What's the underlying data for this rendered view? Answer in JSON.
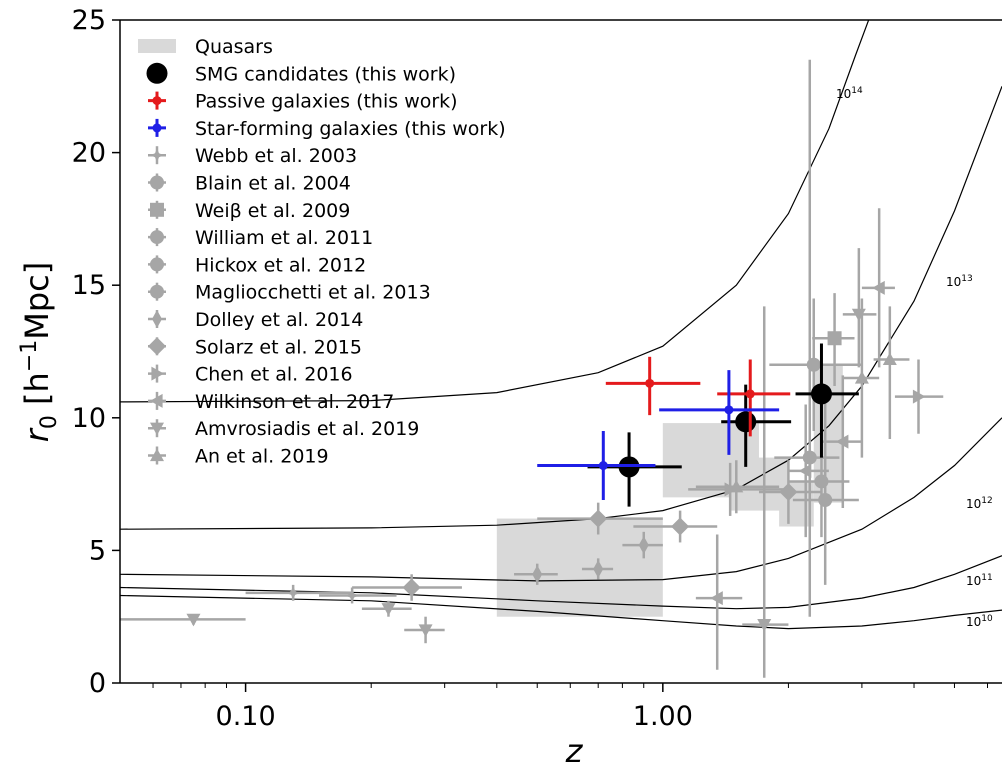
{
  "chart_data": {
    "type": "scatter",
    "xlabel": "z",
    "ylabel": "r_0 [h^-1 Mpc]",
    "xlim": [
      0.05,
      6.5
    ],
    "ylim": [
      0,
      25
    ],
    "xscale": "log",
    "xticks": [
      0.1,
      1.0
    ],
    "xtick_labels": [
      "0.10",
      "1.00"
    ],
    "yticks": [
      0,
      5,
      10,
      15,
      20,
      25
    ],
    "ytick_labels": [
      "0",
      "5",
      "10",
      "15",
      "20",
      "25"
    ],
    "legend_position": "top-left",
    "grid": false,
    "colors": {
      "grey": "#a6a6a6",
      "quasar_fill": "#d9d9d9",
      "smg": "#000000",
      "passive": "#e41a1c",
      "starforming": "#1f1fe6"
    },
    "quasar_boxes": [
      {
        "x": [
          0.4,
          1.0
        ],
        "y": [
          2.5,
          6.2
        ]
      },
      {
        "x": [
          1.0,
          1.7
        ],
        "y": [
          7.0,
          9.8
        ]
      },
      {
        "x": [
          1.45,
          2.0
        ],
        "y": [
          6.5,
          8.5
        ]
      },
      {
        "x": [
          1.9,
          2.3
        ],
        "y": [
          5.9,
          7.6
        ]
      },
      {
        "x": [
          2.3,
          2.7
        ],
        "y": [
          6.8,
          12.0
        ]
      }
    ],
    "curves": [
      {
        "label": "10^14",
        "points": [
          [
            0.05,
            10.6
          ],
          [
            0.2,
            10.65
          ],
          [
            0.4,
            10.95
          ],
          [
            0.7,
            11.7
          ],
          [
            1.0,
            12.7
          ],
          [
            1.5,
            15.0
          ],
          [
            2.0,
            17.7
          ],
          [
            2.5,
            20.9
          ],
          [
            2.9,
            23.7
          ],
          [
            3.2,
            25.5
          ]
        ]
      },
      {
        "label": "10^13",
        "points": [
          [
            0.05,
            5.8
          ],
          [
            0.2,
            5.85
          ],
          [
            0.4,
            5.95
          ],
          [
            0.7,
            6.2
          ],
          [
            1.0,
            6.5
          ],
          [
            1.5,
            7.3
          ],
          [
            2.0,
            8.4
          ],
          [
            2.5,
            9.7
          ],
          [
            3.0,
            11.2
          ],
          [
            4.0,
            14.4
          ],
          [
            5.0,
            17.8
          ],
          [
            6.5,
            22.5
          ]
        ]
      },
      {
        "label": "10^12",
        "points": [
          [
            0.05,
            4.1
          ],
          [
            0.2,
            4.0
          ],
          [
            0.5,
            3.85
          ],
          [
            1.0,
            3.9
          ],
          [
            1.5,
            4.2
          ],
          [
            2.0,
            4.7
          ],
          [
            3.0,
            5.8
          ],
          [
            4.0,
            7.0
          ],
          [
            5.0,
            8.2
          ],
          [
            6.5,
            10.0
          ]
        ]
      },
      {
        "label": "10^11",
        "points": [
          [
            0.05,
            3.6
          ],
          [
            0.2,
            3.4
          ],
          [
            0.5,
            3.1
          ],
          [
            1.0,
            2.9
          ],
          [
            1.5,
            2.8
          ],
          [
            2.0,
            2.85
          ],
          [
            3.0,
            3.2
          ],
          [
            4.0,
            3.6
          ],
          [
            5.0,
            4.1
          ],
          [
            6.5,
            4.8
          ]
        ]
      },
      {
        "label": "10^10",
        "points": [
          [
            0.05,
            3.3
          ],
          [
            0.2,
            3.1
          ],
          [
            0.5,
            2.7
          ],
          [
            1.0,
            2.35
          ],
          [
            1.5,
            2.15
          ],
          [
            2.0,
            2.05
          ],
          [
            3.0,
            2.15
          ],
          [
            4.0,
            2.35
          ],
          [
            5.0,
            2.55
          ],
          [
            6.5,
            2.75
          ]
        ]
      }
    ],
    "curve_labels": [
      "10",
      "14",
      "10",
      "13",
      "10",
      "12",
      "10",
      "11",
      "10",
      "10"
    ],
    "series": [
      {
        "name": "SMG candidates (this work)",
        "marker": "circle_big",
        "color": "#000000",
        "points": [
          [
            0.83,
            8.15,
            0.17,
            0.28,
            1.5,
            1.3
          ],
          [
            1.58,
            9.85,
            0.2,
            0.45,
            1.7,
            1.4
          ],
          [
            2.4,
            10.9,
            0.32,
            0.55,
            2.4,
            1.9
          ]
        ]
      },
      {
        "name": "Passive galaxies (this work)",
        "marker": "circle",
        "color": "#e41a1c",
        "points": [
          [
            0.93,
            11.3,
            0.2,
            0.3,
            1.2,
            1.0
          ],
          [
            1.62,
            10.9,
            0.27,
            0.4,
            1.6,
            1.3
          ]
        ]
      },
      {
        "name": "Star-forming galaxies (this work)",
        "marker": "circle",
        "color": "#1f1fe6",
        "points": [
          [
            0.72,
            8.2,
            0.22,
            0.24,
            1.3,
            1.3
          ],
          [
            1.44,
            10.3,
            0.46,
            0.46,
            1.7,
            1.5
          ]
        ]
      },
      {
        "name": "Webb et al. 2003",
        "marker": "star",
        "color": "#a6a6a6",
        "points": [
          [
            0.13,
            3.4,
            0.03,
            0.05,
            0.3,
            0.3
          ],
          [
            0.18,
            3.3,
            0.03,
            0.05,
            0.3,
            0.3
          ]
        ]
      },
      {
        "name": "Blain et al. 2004",
        "marker": "circle",
        "color": "#a6a6a6",
        "points": [
          [
            2.45,
            6.9,
            0.4,
            0.5,
            3.2,
            4.0
          ]
        ]
      },
      {
        "name": "Weiβ et al. 2009",
        "marker": "square",
        "color": "#a6a6a6",
        "points": [
          [
            2.58,
            13.0,
            0.3,
            0.3,
            1.8,
            1.7
          ]
        ]
      },
      {
        "name": "William et al. 2011",
        "marker": "circle",
        "color": "#a6a6a6",
        "points": [
          [
            2.3,
            12.0,
            0.5,
            0.7,
            2.5,
            2.5
          ]
        ]
      },
      {
        "name": "Hickox et al. 2012",
        "marker": "circle",
        "color": "#a6a6a6",
        "points": [
          [
            2.4,
            7.6,
            0.4,
            0.4,
            2.1,
            2.2
          ]
        ]
      },
      {
        "name": "Magliocchetti et al. 2013",
        "marker": "circle",
        "color": "#a6a6a6",
        "points": [
          [
            2.25,
            8.5,
            0.4,
            0.4,
            6.0,
            15.0
          ]
        ]
      },
      {
        "name": "Dolley et al. 2014",
        "marker": "thin_diamond",
        "color": "#a6a6a6",
        "points": [
          [
            0.5,
            4.1,
            0.06,
            0.06,
            0.4,
            0.4
          ],
          [
            0.7,
            4.3,
            0.06,
            0.06,
            0.4,
            0.4
          ],
          [
            0.9,
            5.2,
            0.1,
            0.1,
            0.5,
            0.5
          ]
        ]
      },
      {
        "name": "Solarz et al. 2015",
        "marker": "diamond",
        "color": "#a6a6a6",
        "points": [
          [
            0.25,
            3.6,
            0.07,
            0.08,
            0.5,
            0.5
          ],
          [
            0.7,
            6.2,
            0.2,
            0.3,
            0.6,
            0.6
          ],
          [
            1.1,
            5.9,
            0.25,
            0.25,
            0.6,
            0.6
          ],
          [
            2.0,
            7.2,
            0.3,
            0.4,
            1.2,
            1.2
          ]
        ]
      },
      {
        "name": "Chen et al. 2016",
        "marker": "triangle_right",
        "color": "#a6a6a6",
        "points": [
          [
            1.45,
            7.3,
            0.3,
            0.5,
            1.0,
            1.0
          ],
          [
            4.1,
            10.8,
            0.5,
            0.6,
            1.4,
            1.4
          ]
        ]
      },
      {
        "name": "Wilkinson et al. 2017",
        "marker": "triangle_left",
        "color": "#a6a6a6",
        "points": [
          [
            1.35,
            3.2,
            0.15,
            0.2,
            2.7,
            2.4
          ],
          [
            2.2,
            8.0,
            0.2,
            0.3,
            2.5,
            2.5
          ],
          [
            2.7,
            9.1,
            0.3,
            0.3,
            2.5,
            2.5
          ],
          [
            3.3,
            14.9,
            0.3,
            0.3,
            3.0,
            3.0
          ]
        ]
      },
      {
        "name": "Amvrosiadis et al. 2019",
        "marker": "triangle_down",
        "color": "#a6a6a6",
        "points": [
          [
            0.075,
            2.4,
            0.025,
            0.025,
            0.2,
            0.2
          ],
          [
            0.22,
            2.8,
            0.03,
            0.03,
            0.3,
            0.3
          ],
          [
            0.27,
            2.0,
            0.03,
            0.03,
            0.5,
            0.5
          ],
          [
            1.75,
            2.2,
            0.2,
            0.25,
            2.0,
            12.0
          ],
          [
            2.95,
            13.9,
            0.25,
            0.3,
            2.0,
            2.5
          ]
        ]
      },
      {
        "name": "An et al. 2019",
        "marker": "triangle_up",
        "color": "#a6a6a6",
        "points": [
          [
            1.5,
            7.4,
            0.3,
            0.4,
            1.0,
            1.0
          ],
          [
            3.0,
            11.5,
            0.3,
            0.3,
            3.0,
            3.0
          ],
          [
            3.5,
            12.2,
            0.3,
            0.4,
            3.0,
            2.0
          ]
        ]
      }
    ],
    "legend": [
      {
        "label": "Quasars",
        "marker": "box",
        "color": "#d9d9d9"
      },
      {
        "label": "SMG candidates (this work)",
        "marker": "circle_big",
        "color": "#000000"
      },
      {
        "label": "Passive galaxies (this work)",
        "marker": "circle_err",
        "color": "#e41a1c"
      },
      {
        "label": "Star-forming galaxies (this work)",
        "marker": "circle_err",
        "color": "#1f1fe6"
      },
      {
        "label": "Webb et al. 2003",
        "marker": "star",
        "color": "#a6a6a6"
      },
      {
        "label": "Blain et al. 2004",
        "marker": "circle",
        "color": "#a6a6a6"
      },
      {
        "label": "Weiβ et al. 2009",
        "marker": "square",
        "color": "#a6a6a6"
      },
      {
        "label": "William et al. 2011",
        "marker": "circle",
        "color": "#a6a6a6"
      },
      {
        "label": "Hickox et al. 2012",
        "marker": "circle",
        "color": "#a6a6a6"
      },
      {
        "label": "Magliocchetti et al. 2013",
        "marker": "circle",
        "color": "#a6a6a6"
      },
      {
        "label": "Dolley et al. 2014",
        "marker": "thin_diamond",
        "color": "#a6a6a6"
      },
      {
        "label": "Solarz et al. 2015",
        "marker": "diamond",
        "color": "#a6a6a6"
      },
      {
        "label": "Chen et al. 2016",
        "marker": "triangle_right",
        "color": "#a6a6a6"
      },
      {
        "label": "Wilkinson et al. 2017",
        "marker": "triangle_left",
        "color": "#a6a6a6"
      },
      {
        "label": "Amvrosiadis et al. 2019",
        "marker": "triangle_down",
        "color": "#a6a6a6"
      },
      {
        "label": "An et al. 2019",
        "marker": "triangle_up",
        "color": "#a6a6a6"
      }
    ]
  }
}
